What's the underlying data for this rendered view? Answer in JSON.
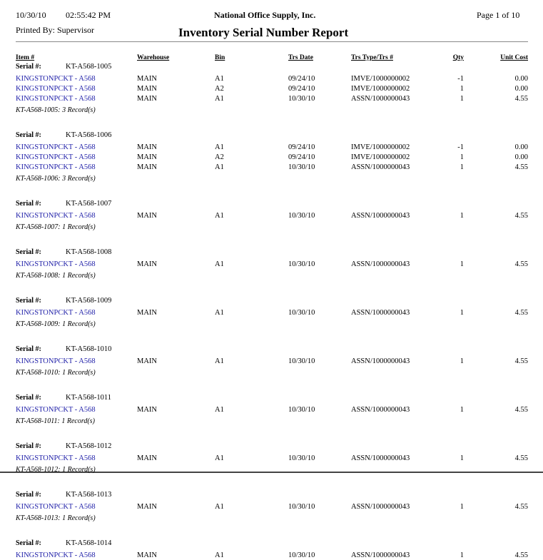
{
  "header": {
    "date": "10/30/10",
    "time": "02:55:42 PM",
    "company": "National Office Supply, Inc.",
    "page": "Page 1 of 10",
    "printed_by": "Printed By: Supervisor",
    "title": "Inventory Serial Number Report"
  },
  "table": {
    "columns": [
      "Item #",
      "Warehouse",
      "Bin",
      "Trs Date",
      "Trs Type/Trs #",
      "Qty",
      "Unit Cost"
    ],
    "serial_label": "Serial #:",
    "groups": [
      {
        "serial": "KT-A568-1005",
        "rows": [
          [
            "KINGSTONPCKT - A568",
            "MAIN",
            "A1",
            "09/24/10",
            "IMVE/1000000002",
            "-1",
            "0.00"
          ],
          [
            "KINGSTONPCKT - A568",
            "MAIN",
            "A2",
            "09/24/10",
            "IMVE/1000000002",
            "1",
            "0.00"
          ],
          [
            "KINGSTONPCKT - A568",
            "MAIN",
            "A1",
            "10/30/10",
            "ASSN/1000000043",
            "1",
            "4.55"
          ]
        ],
        "footer": "KT-A568-1005: 3 Record(s)"
      },
      {
        "serial": "KT-A568-1006",
        "rows": [
          [
            "KINGSTONPCKT - A568",
            "MAIN",
            "A1",
            "09/24/10",
            "IMVE/1000000002",
            "-1",
            "0.00"
          ],
          [
            "KINGSTONPCKT - A568",
            "MAIN",
            "A2",
            "09/24/10",
            "IMVE/1000000002",
            "1",
            "0.00"
          ],
          [
            "KINGSTONPCKT - A568",
            "MAIN",
            "A1",
            "10/30/10",
            "ASSN/1000000043",
            "1",
            "4.55"
          ]
        ],
        "footer": "KT-A568-1006: 3 Record(s)"
      },
      {
        "serial": "KT-A568-1007",
        "rows": [
          [
            "KINGSTONPCKT - A568",
            "MAIN",
            "A1",
            "10/30/10",
            "ASSN/1000000043",
            "1",
            "4.55"
          ]
        ],
        "footer": "KT-A568-1007: 1 Record(s)"
      },
      {
        "serial": "KT-A568-1008",
        "rows": [
          [
            "KINGSTONPCKT - A568",
            "MAIN",
            "A1",
            "10/30/10",
            "ASSN/1000000043",
            "1",
            "4.55"
          ]
        ],
        "footer": "KT-A568-1008: 1 Record(s)"
      },
      {
        "serial": "KT-A568-1009",
        "rows": [
          [
            "KINGSTONPCKT - A568",
            "MAIN",
            "A1",
            "10/30/10",
            "ASSN/1000000043",
            "1",
            "4.55"
          ]
        ],
        "footer": "KT-A568-1009: 1 Record(s)"
      },
      {
        "serial": "KT-A568-1010",
        "rows": [
          [
            "KINGSTONPCKT - A568",
            "MAIN",
            "A1",
            "10/30/10",
            "ASSN/1000000043",
            "1",
            "4.55"
          ]
        ],
        "footer": "KT-A568-1010: 1 Record(s)"
      },
      {
        "serial": "KT-A568-1011",
        "rows": [
          [
            "KINGSTONPCKT - A568",
            "MAIN",
            "A1",
            "10/30/10",
            "ASSN/1000000043",
            "1",
            "4.55"
          ]
        ],
        "footer": "KT-A568-1011: 1 Record(s)"
      },
      {
        "serial": "KT-A568-1012",
        "rows": [
          [
            "KINGSTONPCKT - A568",
            "MAIN",
            "A1",
            "10/30/10",
            "ASSN/1000000043",
            "1",
            "4.55"
          ]
        ],
        "footer": "KT-A568-1012: 1 Record(s)"
      },
      {
        "serial": "KT-A568-1013",
        "rows": [
          [
            "KINGSTONPCKT - A568",
            "MAIN",
            "A1",
            "10/30/10",
            "ASSN/1000000043",
            "1",
            "4.55"
          ]
        ],
        "footer": "KT-A568-1013: 1 Record(s)"
      },
      {
        "serial": "KT-A568-1014",
        "rows": [
          [
            "KINGSTONPCKT - A568",
            "MAIN",
            "A1",
            "10/30/10",
            "ASSN/1000000043",
            "1",
            "4.55"
          ]
        ]
      }
    ]
  }
}
